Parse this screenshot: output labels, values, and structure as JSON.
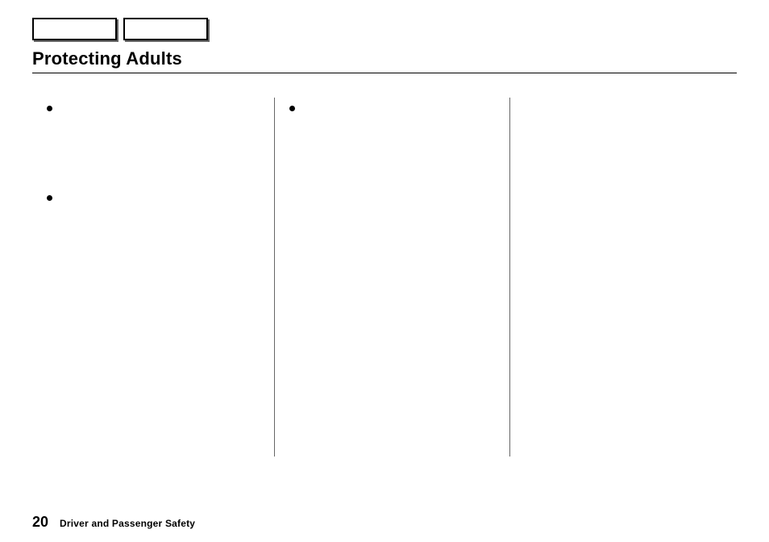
{
  "header": {
    "title": "Protecting Adults"
  },
  "buttons": {
    "b1_label": "",
    "b2_label": ""
  },
  "content": {
    "col1": {
      "bullets": [
        {
          "text": ""
        },
        {
          "text": ""
        }
      ]
    },
    "col2": {
      "bullets": [
        {
          "text": ""
        }
      ]
    }
  },
  "footer": {
    "page_number": "20",
    "section_label": "Driver and Passenger Safety"
  }
}
